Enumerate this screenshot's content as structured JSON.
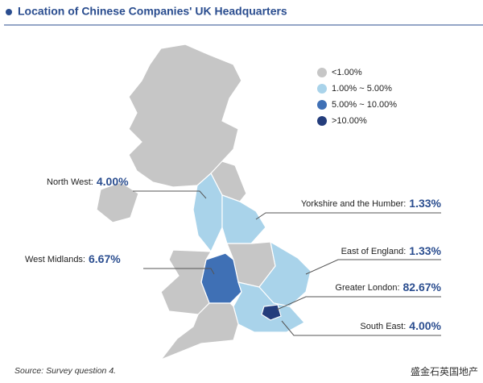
{
  "header": {
    "title": "Location of Chinese Companies' UK Headquarters"
  },
  "legend": [
    {
      "label": "<1.00%",
      "color": "#c6c6c6"
    },
    {
      "label": "1.00% ~ 5.00%",
      "color": "#a9d3ea"
    },
    {
      "label": "5.00% ~ 10.00%",
      "color": "#3f70b5"
    },
    {
      "label": ">10.00%",
      "color": "#243d7c"
    }
  ],
  "regions": [
    {
      "label": "North West:",
      "value": "4.00%"
    },
    {
      "label": "Yorkshire and the Humber:",
      "value": "1.33%"
    },
    {
      "label": "West Midlands:",
      "value": "6.67%"
    },
    {
      "label": "East of England:",
      "value": "1.33%"
    },
    {
      "label": "Greater London:",
      "value": "82.67%"
    },
    {
      "label": "South East:",
      "value": "4.00%"
    }
  ],
  "source": "Source: Survey question 4.",
  "watermark": "盛金石英国地产"
}
